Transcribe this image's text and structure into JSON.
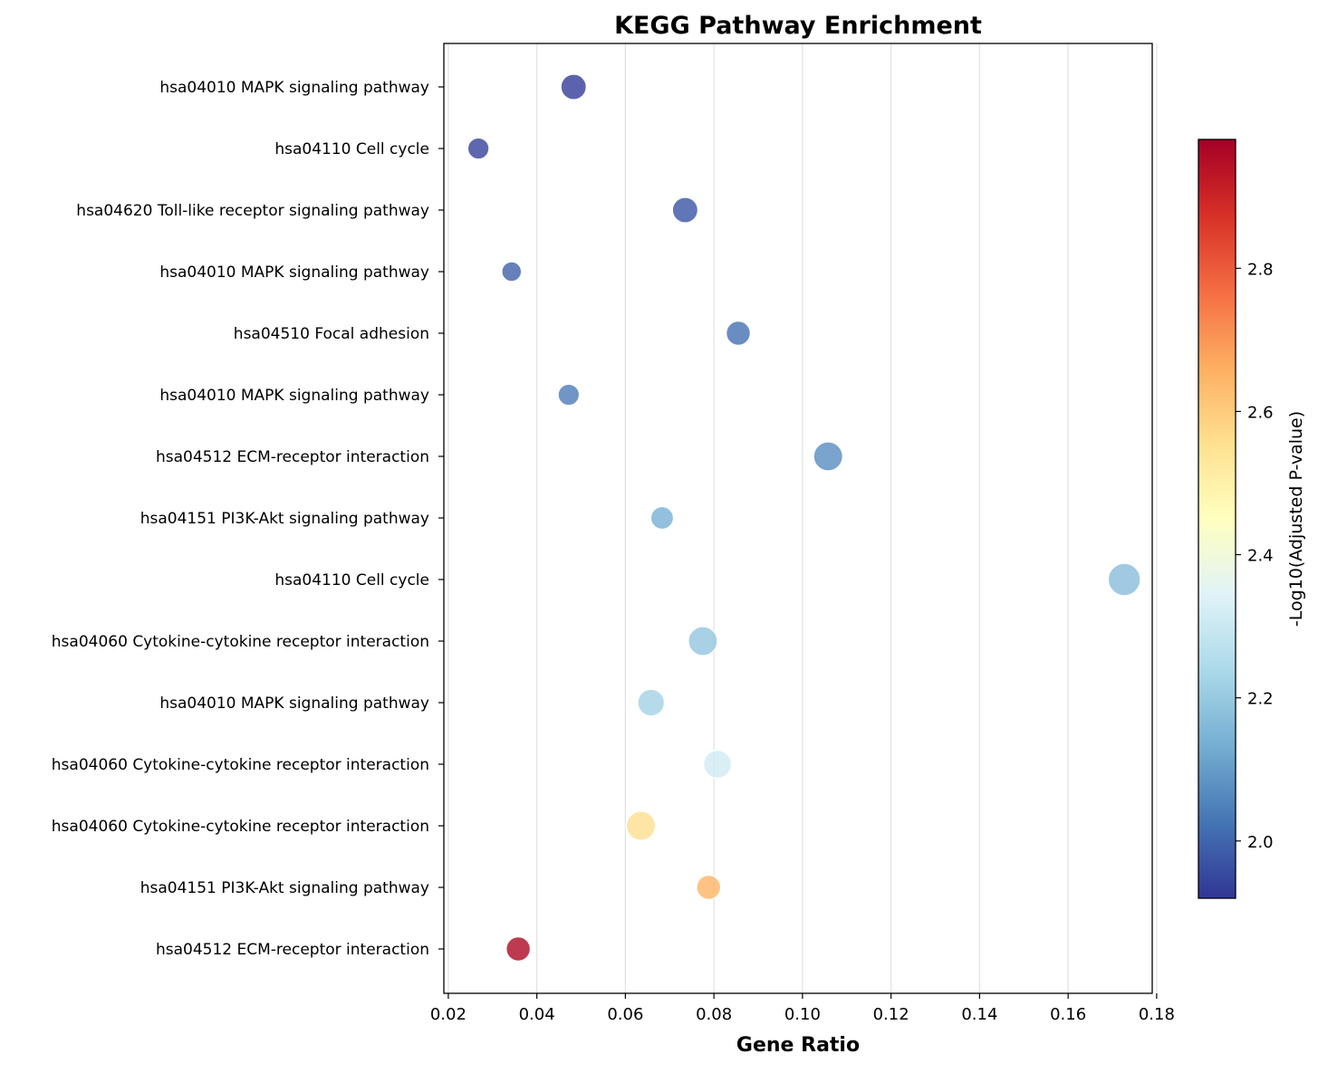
{
  "chart_data": {
    "type": "scatter",
    "title": "KEGG Pathway Enrichment",
    "xlabel": "Gene Ratio",
    "ylabel": "",
    "xlim": [
      0.019,
      0.179
    ],
    "xticks": [
      "0.02",
      "0.04",
      "0.06",
      "0.08",
      "0.10",
      "0.12",
      "0.14",
      "0.16",
      "0.18"
    ],
    "x_grid": true,
    "size_encodes": "gene count",
    "colormap": "RdYlBu_r",
    "colorbar": {
      "label": "-Log10(Adjusted P-value)",
      "range": [
        1.92,
        2.98
      ],
      "ticks": [
        "2.0",
        "2.2",
        "2.4",
        "2.6",
        "2.8"
      ],
      "position": "right"
    },
    "points": [
      {
        "label": "hsa04010 MAPK signaling pathway",
        "x": 0.0483,
        "value": 1.93,
        "size": 10
      },
      {
        "label": "hsa04110 Cell cycle",
        "x": 0.0268,
        "value": 1.94,
        "size": 7
      },
      {
        "label": "hsa04620 Toll-like receptor signaling pathway",
        "x": 0.0735,
        "value": 1.97,
        "size": 10
      },
      {
        "label": "hsa04010 MAPK signaling pathway",
        "x": 0.0343,
        "value": 1.99,
        "size": 6
      },
      {
        "label": "hsa04510 Focal adhesion",
        "x": 0.0855,
        "value": 2.02,
        "size": 9
      },
      {
        "label": "hsa04010 MAPK signaling pathway",
        "x": 0.0472,
        "value": 2.04,
        "size": 7
      },
      {
        "label": "hsa04512 ECM-receptor interaction",
        "x": 0.1058,
        "value": 2.07,
        "size": 13
      },
      {
        "label": "hsa04151 PI3K-Akt signaling pathway",
        "x": 0.0683,
        "value": 2.14,
        "size": 8
      },
      {
        "label": "hsa04110 Cell cycle",
        "x": 0.1727,
        "value": 2.17,
        "size": 16
      },
      {
        "label": "hsa04060 Cytokine-cytokine receptor interaction",
        "x": 0.0775,
        "value": 2.19,
        "size": 13
      },
      {
        "label": "hsa04010 MAPK signaling pathway",
        "x": 0.0658,
        "value": 2.22,
        "size": 11
      },
      {
        "label": "hsa04060 Cytokine-cytokine receptor interaction",
        "x": 0.0808,
        "value": 2.31,
        "size": 12
      },
      {
        "label": "hsa04060 Cytokine-cytokine receptor interaction",
        "x": 0.0635,
        "value": 2.56,
        "size": 13
      },
      {
        "label": "hsa04151 PI3K-Akt signaling pathway",
        "x": 0.0788,
        "value": 2.65,
        "size": 9
      },
      {
        "label": "hsa04512 ECM-receptor interaction",
        "x": 0.0358,
        "value": 2.96,
        "size": 9
      }
    ]
  }
}
